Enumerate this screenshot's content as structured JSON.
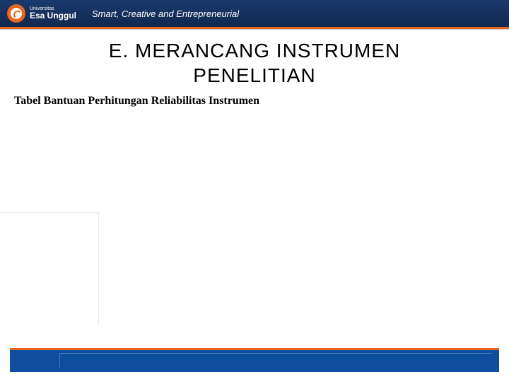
{
  "header": {
    "logo": {
      "university_label": "Universitas",
      "university_name": "Esa Unggul"
    },
    "tagline": "Smart, Creative and Entrepreneurial",
    "colors": {
      "bar_gradient_top": "#1a3a6e",
      "bar_gradient_bottom": "#0f2850",
      "orange_accent": "#e8661b"
    }
  },
  "slide": {
    "title_line1": "E. MERANCANG INSTRUMEN",
    "title_line2": "PENELITIAN",
    "subtitle": "Tabel Bantuan Perhitungan Reliabilitas Instrumen",
    "title_fontsize": 28,
    "subtitle_fontsize": 16,
    "background_color": "#ffffff"
  },
  "footer": {
    "bar_color": "#0d4f9e",
    "accent_color": "#e8661b"
  }
}
